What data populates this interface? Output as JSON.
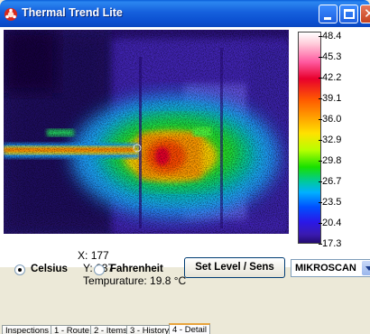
{
  "window": {
    "title": "Thermal Trend Lite",
    "icon": "thermal-trend-app-icon"
  },
  "readout": {
    "x_label": "X: 177",
    "y_label": "Y: 237",
    "temp_label": "Tempurature: 19.8 °C"
  },
  "scale": {
    "ticks": [
      "48.4",
      "45.3",
      "42.2",
      "39.1",
      "36.0",
      "32.9",
      "29.8",
      "26.7",
      "23.5",
      "20.4",
      "17.3"
    ]
  },
  "units": {
    "celsius_label": "Celsius",
    "fahrenheit_label": "Fahrenheit",
    "selected": "Celsius"
  },
  "set_button_label": "Set Level / Sens",
  "camera_select": {
    "value": "MIKROSCAN"
  },
  "tabs": [
    {
      "label": "Inspections",
      "active": false
    },
    {
      "label": "1 - Route",
      "active": false
    },
    {
      "label": "2 - Items",
      "active": false
    },
    {
      "label": "3 - History",
      "active": false
    },
    {
      "label": "4 - Detail",
      "active": true
    }
  ],
  "colors": {
    "titlebar": "#0b4fd0",
    "hot_spot": "#e8002c",
    "background": "#ece9d8"
  }
}
